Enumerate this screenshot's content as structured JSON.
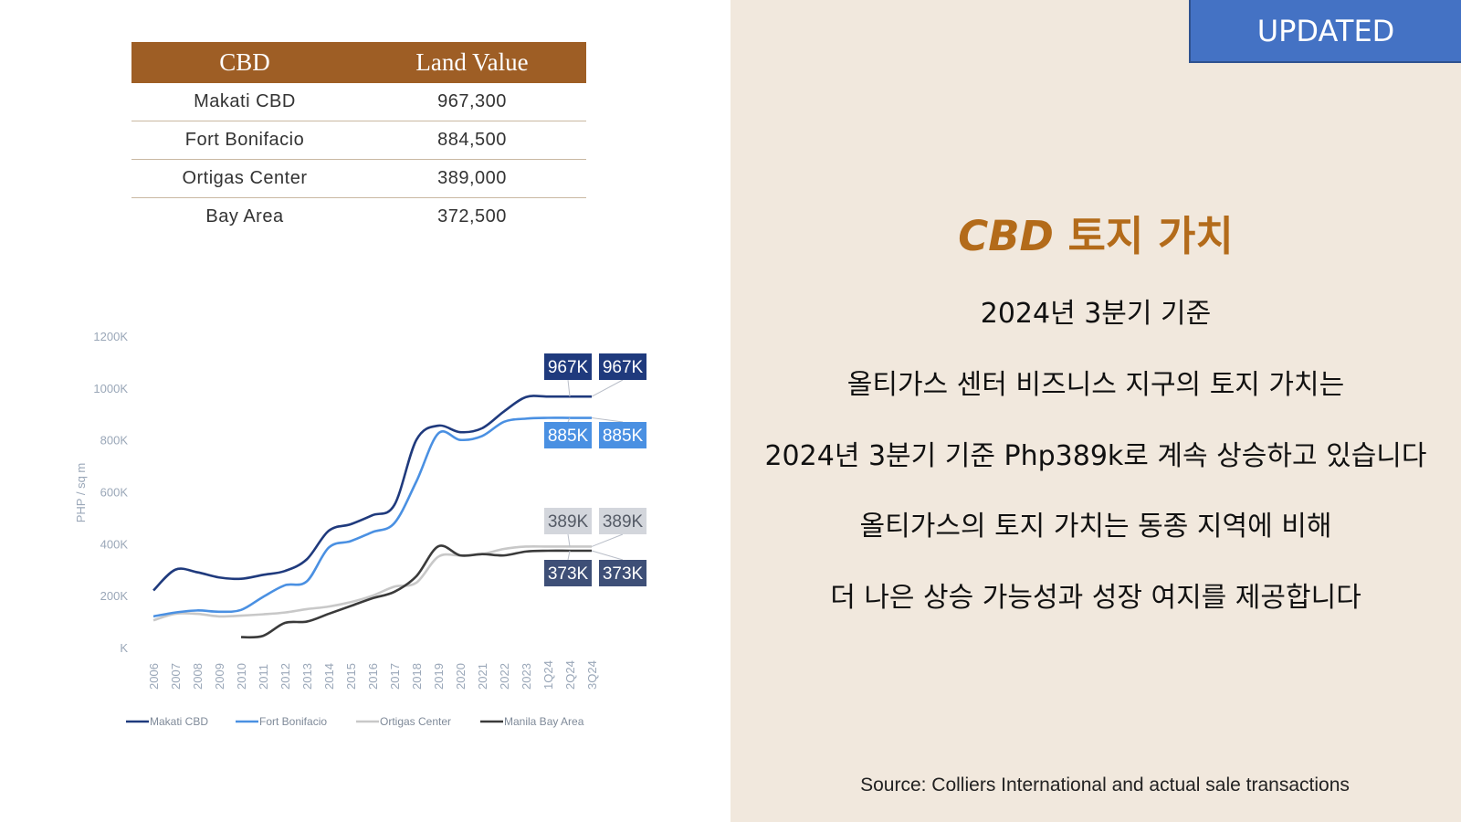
{
  "table": {
    "headers": [
      "CBD",
      "Land Value"
    ],
    "rows": [
      [
        "Makati CBD",
        "967,300"
      ],
      [
        "Fort Bonifacio",
        "884,500"
      ],
      [
        "Ortigas Center",
        "389,000"
      ],
      [
        "Bay Area",
        "372,500"
      ]
    ]
  },
  "chart_data": {
    "type": "line",
    "ylabel": "PHP / sq m",
    "ytick_labels": [
      "K",
      "200K",
      "400K",
      "600K",
      "800K",
      "1000K",
      "1200K"
    ],
    "ylim": [
      0,
      1200000
    ],
    "x": [
      "2006",
      "2007",
      "2008",
      "2009",
      "2010",
      "2011",
      "2012",
      "2013",
      "2014",
      "2015",
      "2016",
      "2017",
      "2018",
      "2019",
      "2020",
      "2021",
      "2022",
      "2023",
      "1Q24",
      "2Q24",
      "3Q24"
    ],
    "series": [
      {
        "name": "Makati CBD",
        "color": "#1f3a7d",
        "values": [
          220000,
          300000,
          290000,
          270000,
          265000,
          280000,
          295000,
          340000,
          450000,
          475000,
          510000,
          550000,
          800000,
          855000,
          830000,
          845000,
          910000,
          965000,
          967000,
          967000,
          967000
        ]
      },
      {
        "name": "Fort Bonifacio",
        "color": "#4a90e2",
        "values": [
          120000,
          135000,
          143000,
          138000,
          145000,
          195000,
          240000,
          255000,
          385000,
          410000,
          445000,
          480000,
          640000,
          825000,
          800000,
          815000,
          870000,
          882000,
          885000,
          885000,
          885000
        ]
      },
      {
        "name": "Ortigas Center",
        "color": "#c8c8c8",
        "values": [
          105000,
          130000,
          130000,
          120000,
          123000,
          128000,
          135000,
          148000,
          158000,
          175000,
          200000,
          235000,
          250000,
          350000,
          355000,
          360000,
          380000,
          389000,
          389000,
          389000,
          389000
        ]
      },
      {
        "name": "Manila Bay Area",
        "color": "#3a3a3a",
        "values": [
          null,
          null,
          null,
          null,
          40000,
          45000,
          95000,
          100000,
          130000,
          160000,
          190000,
          215000,
          275000,
          390000,
          355000,
          360000,
          355000,
          370000,
          373000,
          373000,
          373000
        ]
      }
    ],
    "callouts": [
      {
        "series": "Makati CBD",
        "labels": [
          "967K",
          "967K"
        ],
        "bg": "#1f3a7d",
        "fg": "#ffffff"
      },
      {
        "series": "Fort Bonifacio",
        "labels": [
          "885K",
          "885K"
        ],
        "bg": "#4a90e2",
        "fg": "#ffffff"
      },
      {
        "series": "Ortigas Center",
        "labels": [
          "389K",
          "389K"
        ],
        "bg": "#d3d6dc",
        "fg": "#555b66"
      },
      {
        "series": "Manila Bay Area",
        "labels": [
          "373K",
          "373K"
        ],
        "bg": "#3e4f77",
        "fg": "#ffffff"
      }
    ]
  },
  "badge": "UPDATED",
  "title": {
    "cbd": "CBD",
    "rest": " 토지 가치"
  },
  "lines": [
    "2024년 3분기 기준",
    "올티가스 센터 비즈니스 지구의 토지 가치는",
    "2024년 3분기 기준 Php389k로 계속 상승하고 있습니다",
    "올티가스의 토지 가치는 동종 지역에 비해",
    "더 나은 상승 가능성과 성장 여지를 제공합니다"
  ],
  "source": "Source: Colliers International and actual sale transactions",
  "colors": {
    "header": "#9e5e25",
    "title": "#b36b1a",
    "badge": "#4472c4",
    "panel": "#f1e8dd"
  }
}
